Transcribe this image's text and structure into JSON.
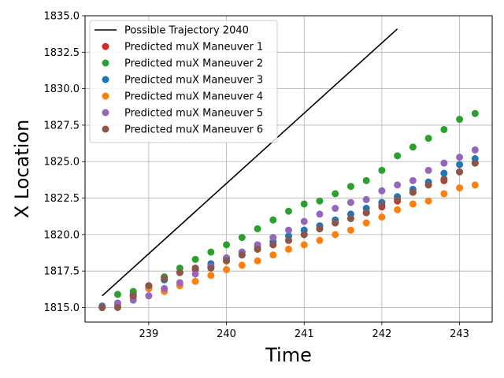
{
  "chart_data": {
    "type": "scatter",
    "title": "",
    "xlabel": "Time",
    "ylabel": "X Location",
    "xlim": [
      238.18,
      243.42
    ],
    "ylim": [
      1814.0,
      1835.0
    ],
    "x_ticks": [
      239,
      240,
      241,
      242,
      243
    ],
    "y_ticks": [
      1815.0,
      1817.5,
      1820.0,
      1822.5,
      1825.0,
      1827.5,
      1830.0,
      1832.5,
      1835.0
    ],
    "grid": true,
    "legend_position": "top-left",
    "line": {
      "name": "Possible Trajectory 2040",
      "color": "#000000",
      "x": [
        238.4,
        242.2
      ],
      "y": [
        1815.8,
        1834.1
      ]
    },
    "x": [
      238.4,
      238.6,
      238.8,
      239.0,
      239.2,
      239.4,
      239.6,
      239.8,
      240.0,
      240.2,
      240.4,
      240.6,
      240.8,
      241.0,
      241.2,
      241.4,
      241.6,
      241.8,
      242.0,
      242.2,
      242.4,
      242.6,
      242.8,
      243.0,
      243.2
    ],
    "series": [
      {
        "name": "Predicted muX Maneuver 1",
        "color": "#d62728",
        "values": [
          1815.0,
          1815.1,
          1815.9,
          1816.4,
          1816.9,
          1817.4,
          1817.6,
          1817.8,
          1818.2,
          1818.6,
          1819.0,
          1819.3,
          1819.6,
          1820.0,
          1820.4,
          1820.8,
          1821.1,
          1821.5,
          1821.9,
          1822.3,
          1822.9,
          1823.4,
          1823.7,
          1824.3,
          1824.9
        ]
      },
      {
        "name": "Predicted muX Maneuver 2",
        "color": "#2ca02c",
        "values": [
          1815.0,
          1815.9,
          1816.1,
          1816.5,
          1817.1,
          1817.7,
          1818.3,
          1818.8,
          1819.3,
          1819.8,
          1820.4,
          1821.0,
          1821.6,
          1822.1,
          1822.3,
          1822.8,
          1823.3,
          1823.7,
          1824.4,
          1825.4,
          1826.0,
          1826.6,
          1827.2,
          1827.9,
          1828.3
        ]
      },
      {
        "name": "Predicted muX Maneuver 3",
        "color": "#1f77b4",
        "values": [
          1815.1,
          1815.3,
          1815.8,
          1816.3,
          1816.9,
          1817.4,
          1817.7,
          1818.0,
          1818.4,
          1818.8,
          1819.2,
          1819.5,
          1819.9,
          1820.3,
          1820.6,
          1821.0,
          1821.4,
          1821.8,
          1822.2,
          1822.6,
          1823.1,
          1823.6,
          1824.2,
          1824.8,
          1825.2
        ]
      },
      {
        "name": "Predicted muX Maneuver 4",
        "color": "#ff7f0e",
        "values": [
          1815.0,
          1815.1,
          1815.7,
          1816.3,
          1816.1,
          1816.5,
          1816.8,
          1817.2,
          1817.6,
          1817.9,
          1818.2,
          1818.6,
          1819.0,
          1819.3,
          1819.6,
          1820.0,
          1820.3,
          1820.8,
          1821.2,
          1821.7,
          1822.1,
          1822.3,
          1822.8,
          1823.2,
          1823.4
        ]
      },
      {
        "name": "Predicted muX Maneuver 5",
        "color": "#9467bd",
        "values": [
          1815.0,
          1815.3,
          1815.5,
          1815.8,
          1816.3,
          1816.7,
          1817.3,
          1817.8,
          1818.4,
          1818.8,
          1819.3,
          1819.8,
          1820.3,
          1820.9,
          1821.4,
          1821.8,
          1822.2,
          1822.4,
          1823.0,
          1823.4,
          1823.7,
          1824.4,
          1824.9,
          1825.3,
          1825.8
        ]
      },
      {
        "name": "Predicted muX Maneuver 6",
        "color": "#8c564b",
        "values": [
          1815.0,
          1815.0,
          1815.8,
          1816.5,
          1817.0,
          1817.4,
          1817.7,
          1817.7,
          1818.2,
          1818.6,
          1819.0,
          1819.3,
          1819.6,
          1820.0,
          1820.4,
          1820.8,
          1821.1,
          1821.5,
          1822.0,
          1822.4,
          1822.9,
          1823.4,
          1823.8,
          1824.3,
          1824.9
        ]
      }
    ]
  }
}
